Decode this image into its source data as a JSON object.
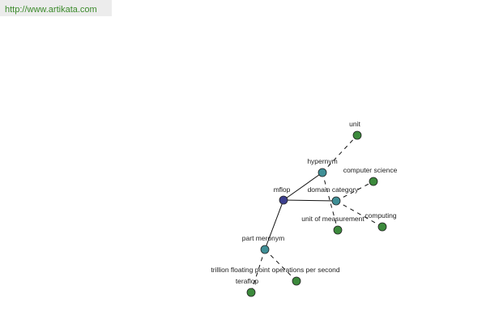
{
  "header": {
    "url": "http://www.artikata.com"
  },
  "nodes": [
    {
      "label": "mflop"
    },
    {
      "label": "hypernym"
    },
    {
      "label": "domain category"
    },
    {
      "label": "part meronym"
    },
    {
      "label": "unit"
    },
    {
      "label": "computer science"
    },
    {
      "label": "computing"
    },
    {
      "label": "unit of measurement"
    },
    {
      "label": "trillion floating point operations per second"
    },
    {
      "label": "teraflop"
    }
  ]
}
